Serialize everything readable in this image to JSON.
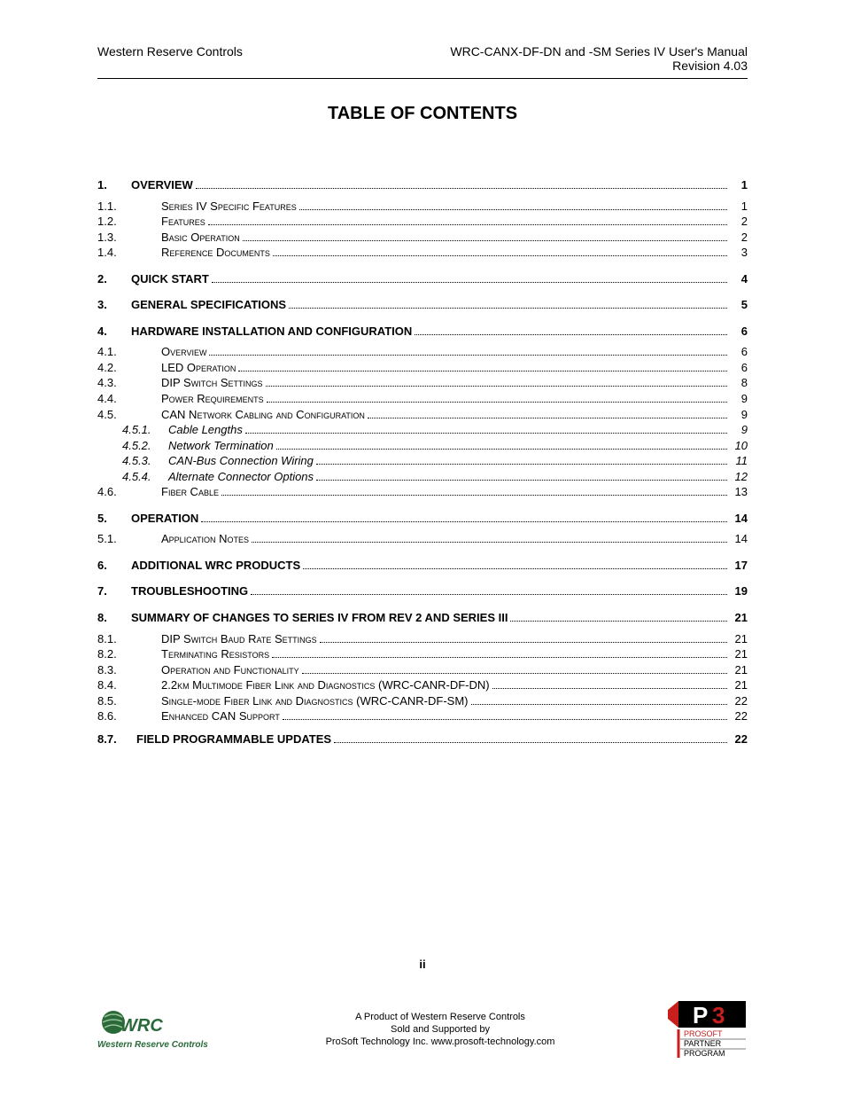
{
  "header": {
    "left": "Western Reserve Controls",
    "right_line1": "WRC-CANX-DF-DN and -SM Series IV User's Manual",
    "right_line2": "Revision 4.03"
  },
  "title": "TABLE OF CONTENTS",
  "toc": [
    {
      "level": 1,
      "num": "1.",
      "text": "Overview",
      "page": "1"
    },
    {
      "level": 2,
      "num": "1.1.",
      "text": "Series IV Specific Features",
      "page": "1"
    },
    {
      "level": 2,
      "num": "1.2.",
      "text": "Features",
      "page": "2"
    },
    {
      "level": 2,
      "num": "1.3.",
      "text": "Basic Operation",
      "page": "2"
    },
    {
      "level": 2,
      "num": "1.4.",
      "text": "Reference Documents",
      "page": "3"
    },
    {
      "level": 1,
      "num": "2.",
      "text": "Quick Start",
      "page": "4"
    },
    {
      "level": 1,
      "num": "3.",
      "text": "General Specifications",
      "page": "5"
    },
    {
      "level": 1,
      "num": "4.",
      "text": "Hardware Installation and Configuration",
      "page": "6"
    },
    {
      "level": 2,
      "num": "4.1.",
      "text": "Overview",
      "page": "6"
    },
    {
      "level": 2,
      "num": "4.2.",
      "text": "LED Operation",
      "page": "6"
    },
    {
      "level": 2,
      "num": "4.3.",
      "text": "DIP Switch Settings",
      "page": "8"
    },
    {
      "level": 2,
      "num": "4.4.",
      "text": "Power Requirements",
      "page": "9"
    },
    {
      "level": 2,
      "num": "4.5.",
      "text": "CAN Network Cabling and Configuration",
      "page": "9"
    },
    {
      "level": 3,
      "num": "4.5.1.",
      "text": "Cable Lengths",
      "page": "9"
    },
    {
      "level": 3,
      "num": "4.5.2.",
      "text": "Network Termination",
      "page": "10"
    },
    {
      "level": 3,
      "num": "4.5.3.",
      "text": "CAN-Bus Connection Wiring",
      "page": "11"
    },
    {
      "level": 3,
      "num": "4.5.4.",
      "text": "Alternate Connector Options",
      "page": "12"
    },
    {
      "level": 2,
      "num": "4.6.",
      "text": "Fiber Cable",
      "page": "13"
    },
    {
      "level": 1,
      "num": "5.",
      "text": "Operation",
      "page": "14"
    },
    {
      "level": 2,
      "num": "5.1.",
      "text": "Application Notes",
      "page": "14"
    },
    {
      "level": 1,
      "num": "6.",
      "text": "Additional WRC Products",
      "page": "17"
    },
    {
      "level": 1,
      "num": "7.",
      "text": "Troubleshooting",
      "page": "19"
    },
    {
      "level": 1,
      "num": "8.",
      "text": "Summary of Changes to Series IV from Rev 2 and Series III",
      "page": "21"
    },
    {
      "level": 2,
      "num": "8.1.",
      "text": "DIP Switch Baud Rate Settings",
      "page": "21"
    },
    {
      "level": 2,
      "num": "8.2.",
      "text": "Terminating Resistors",
      "page": "21"
    },
    {
      "level": 2,
      "num": "8.3.",
      "text": "Operation and Functionality",
      "page": "21"
    },
    {
      "level": 2,
      "num": "8.4.",
      "text": "2.2km Multimode Fiber Link and Diagnostics (WRC-CANR-DF-DN)",
      "page": "21"
    },
    {
      "level": 2,
      "num": "8.5.",
      "text": "Single-mode Fiber Link and Diagnostics (WRC-CANR-DF-SM)",
      "page": "22"
    },
    {
      "level": 2,
      "num": "8.6.",
      "text": "Enhanced CAN Support",
      "page": "22"
    }
  ],
  "toc_87": {
    "num": "8.7.",
    "text": "FIELD PROGRAMMABLE UPDATES",
    "page": "22"
  },
  "page_number": "ii",
  "footer": {
    "line1": "A Product of Western Reserve Controls",
    "line2": "Sold and Supported by",
    "line3": "ProSoft Technology Inc. www.prosoft-technology.com"
  },
  "logos": {
    "wrc_text_main": "WRC",
    "wrc_text_sub": "Western Reserve Controls",
    "wrc_color": "#2a6a3a",
    "p3_text_p": "P",
    "p3_text_3": "3",
    "p3_line1": "PROSOFT",
    "p3_line2": "PARTNER",
    "p3_line3": "PROGRAM",
    "p3_red": "#c81e1e",
    "p3_black": "#000000"
  }
}
